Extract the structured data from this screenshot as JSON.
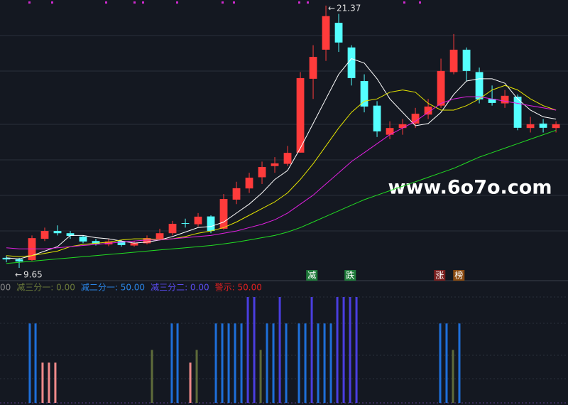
{
  "chart_data": [
    {
      "type": "candlestick",
      "xlim": [
        -0.5,
        43.94
      ],
      "ylim": [
        9.08,
        21.62
      ],
      "open": [
        10.1,
        10.03,
        10.0,
        10.95,
        11.3,
        11.2,
        11.05,
        10.85,
        10.7,
        10.85,
        10.65,
        10.75,
        10.95,
        11.2,
        11.65,
        11.6,
        11.95,
        11.4,
        12.7,
        13.2,
        13.7,
        14.2,
        14.3,
        14.8,
        18.1,
        19.4,
        20.6,
        19.5,
        18.0,
        16.9,
        15.6,
        15.9,
        16.1,
        16.5,
        16.9,
        18.4,
        19.4,
        18.4,
        17.2,
        17.0,
        17.3,
        15.9,
        16.1,
        15.9
      ],
      "high": [
        10.2,
        10.1,
        11.1,
        11.45,
        11.55,
        11.3,
        11.1,
        10.95,
        10.95,
        10.9,
        10.85,
        11.1,
        11.4,
        11.75,
        11.85,
        12.1,
        12.0,
        12.95,
        13.5,
        13.9,
        14.4,
        14.6,
        15.1,
        18.4,
        19.6,
        21.37,
        21.0,
        19.6,
        18.3,
        17.1,
        16.2,
        16.3,
        16.8,
        17.2,
        19.0,
        20.1,
        19.5,
        18.6,
        17.8,
        17.6,
        17.4,
        16.4,
        16.3,
        16.2
      ],
      "low": [
        9.9,
        9.65,
        9.95,
        10.85,
        11.1,
        10.95,
        10.75,
        10.65,
        10.62,
        10.6,
        10.6,
        10.7,
        10.9,
        11.1,
        11.45,
        11.5,
        11.2,
        11.35,
        12.5,
        13.0,
        13.4,
        13.9,
        14.2,
        14.8,
        17.2,
        18.9,
        19.3,
        17.8,
        16.6,
        15.5,
        15.4,
        15.6,
        15.9,
        16.3,
        16.8,
        18.3,
        18.0,
        17.0,
        16.9,
        16.8,
        15.8,
        15.7,
        15.7,
        15.7
      ],
      "close": [
        10.03,
        9.94,
        10.98,
        11.3,
        11.2,
        11.08,
        10.83,
        10.73,
        10.83,
        10.67,
        10.76,
        10.98,
        11.2,
        11.62,
        11.62,
        11.94,
        11.3,
        12.73,
        13.21,
        13.68,
        14.16,
        14.32,
        14.79,
        18.13,
        19.08,
        20.9,
        19.72,
        18.13,
        16.86,
        15.75,
        15.9,
        16.07,
        16.54,
        16.86,
        18.45,
        19.4,
        18.45,
        17.18,
        17.02,
        17.34,
        15.91,
        16.07,
        15.91,
        16.07
      ],
      "up_color": "#ff3b3b",
      "down_color": "#54ffff",
      "series": [
        {
          "color": "#ffffff",
          "values": [
            10.1,
            10.05,
            10.2,
            10.4,
            10.6,
            11.1,
            11.1,
            11.0,
            10.95,
            10.85,
            10.76,
            10.8,
            10.9,
            11.05,
            11.25,
            11.45,
            11.5,
            11.7,
            12.1,
            12.5,
            13.0,
            13.6,
            14.0,
            15.0,
            16.1,
            17.2,
            18.3,
            19.0,
            18.8,
            18.1,
            17.2,
            16.6,
            16.0,
            16.1,
            16.6,
            17.4,
            18.0,
            18.1,
            18.1,
            17.9,
            17.2,
            16.7,
            16.4,
            16.3
          ]
        },
        {
          "color": "#e6e600",
          "values": [
            10.2,
            10.15,
            10.2,
            10.3,
            10.4,
            10.6,
            10.7,
            10.75,
            10.8,
            10.9,
            10.95,
            10.95,
            10.92,
            10.95,
            11.05,
            11.2,
            11.3,
            11.45,
            11.7,
            12.0,
            12.3,
            12.6,
            13.0,
            13.6,
            14.3,
            15.1,
            15.9,
            16.6,
            17.1,
            17.2,
            17.5,
            17.6,
            17.5,
            17.0,
            16.7,
            16.7,
            16.9,
            17.2,
            17.6,
            17.8,
            17.6,
            17.2,
            16.9,
            16.7
          ]
        },
        {
          "color": "#e020e0",
          "values": [
            10.55,
            10.5,
            10.5,
            10.5,
            10.55,
            10.6,
            10.65,
            10.7,
            10.75,
            10.8,
            10.85,
            10.9,
            10.9,
            10.95,
            11.0,
            11.05,
            11.1,
            11.2,
            11.3,
            11.45,
            11.6,
            11.8,
            12.1,
            12.5,
            12.9,
            13.4,
            13.9,
            14.4,
            14.8,
            15.2,
            15.6,
            15.9,
            16.2,
            16.6,
            17.0,
            17.2,
            17.3,
            17.3,
            17.2,
            17.1,
            17.0,
            16.9,
            16.8,
            16.7
          ]
        },
        {
          "color": "#22dd22",
          "values": [
            9.85,
            9.9,
            9.95,
            10.0,
            10.05,
            10.1,
            10.15,
            10.2,
            10.25,
            10.3,
            10.35,
            10.4,
            10.45,
            10.5,
            10.55,
            10.6,
            10.65,
            10.72,
            10.8,
            10.9,
            11.0,
            11.1,
            11.25,
            11.45,
            11.7,
            11.95,
            12.2,
            12.45,
            12.7,
            12.9,
            13.1,
            13.3,
            13.5,
            13.7,
            13.9,
            14.1,
            14.35,
            14.6,
            14.8,
            15.0,
            15.2,
            15.4,
            15.6,
            15.8
          ]
        }
      ],
      "high_label": "21.37",
      "low_label": "9.65",
      "signals": [
        {
          "text": "减",
          "x": 23.9,
          "color": "#1f7a3a"
        },
        {
          "text": "跌",
          "x": 26.9,
          "color": "#1f7a3a"
        },
        {
          "text": "涨",
          "x": 33.9,
          "color": "#7a1f1f"
        },
        {
          "text": "榜",
          "x": 35.4,
          "color": "#8a4a10"
        }
      ],
      "watermark": "www.6o7o.com"
    },
    {
      "type": "bar",
      "xlim": [
        -0.5,
        43.94
      ],
      "ylim": [
        0,
        100
      ],
      "legend": [
        {
          "text": "00",
          "color": "#888888"
        },
        {
          "text": "减三分一: 0.00",
          "color": "#6b7a3a"
        },
        {
          "text": "减二分一: 50.00",
          "color": "#2a86e8"
        },
        {
          "text": "减三分二: 0.00",
          "color": "#5a4cf0"
        },
        {
          "text": "警示: 50.00",
          "color": "#e02020"
        }
      ],
      "series": [
        {
          "color": "#1e6fd9",
          "x": [
            1.83,
            2.28,
            12.94,
            13.39,
            16.39,
            16.89,
            17.39,
            17.89,
            18.39,
            20.39,
            20.89,
            21.89,
            22.89,
            23.39,
            24.39,
            24.89,
            25.39,
            33.94,
            34.44,
            35.44
          ],
          "values": [
            75,
            75,
            75,
            75,
            75,
            75,
            75,
            75,
            75,
            75,
            75,
            75,
            75,
            75,
            75,
            75,
            75,
            75,
            75,
            75
          ]
        },
        {
          "color": "#4a3ee0",
          "x": [
            18.89,
            19.39,
            21.39,
            23.89,
            25.89,
            26.39,
            26.89,
            27.39
          ],
          "values": [
            100,
            100,
            100,
            100,
            100,
            100,
            100,
            100
          ]
        },
        {
          "color": "#f08a8a",
          "x": [
            2.83,
            3.33,
            3.83,
            14.39
          ],
          "values": [
            38,
            38,
            38,
            38
          ]
        },
        {
          "color": "#5e6b3a",
          "x": [
            11.39,
            14.89,
            19.89,
            34.94
          ],
          "values": [
            50,
            50,
            50,
            50
          ]
        }
      ]
    }
  ]
}
